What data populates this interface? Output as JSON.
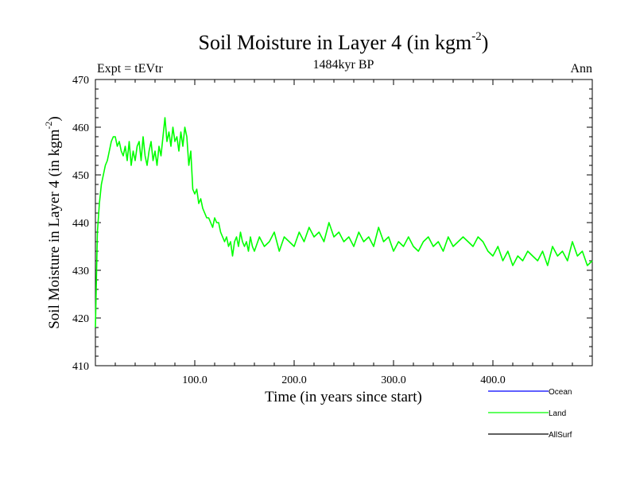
{
  "chart_data": {
    "type": "line",
    "title": "Soil Moisture in Layer 4 (in kgm",
    "title_superscript": "-2",
    "title_suffix": ")",
    "subtitle_left": "Expt = tEVtr",
    "subtitle_center": "1484kyr BP",
    "subtitle_right": "Ann",
    "xlabel": "Time (in years since start)",
    "ylabel": "Soil Moisture in Layer 4 (in kgm",
    "ylabel_superscript": "-2",
    "ylabel_suffix": ")",
    "xlim": [
      0,
      500
    ],
    "ylim": [
      410,
      470
    ],
    "x_ticks": [
      {
        "value": 100,
        "label": "100.0"
      },
      {
        "value": 200,
        "label": "200.0"
      },
      {
        "value": 300,
        "label": "300.0"
      },
      {
        "value": 400,
        "label": "400.0"
      }
    ],
    "y_ticks": [
      {
        "value": 410,
        "label": "410"
      },
      {
        "value": 420,
        "label": "420"
      },
      {
        "value": 430,
        "label": "430"
      },
      {
        "value": 440,
        "label": "440"
      },
      {
        "value": 450,
        "label": "450"
      },
      {
        "value": 460,
        "label": "460"
      },
      {
        "value": 470,
        "label": "470"
      }
    ],
    "series": [
      {
        "name": "Land",
        "color": "#00ff00",
        "x": [
          0,
          2,
          4,
          6,
          8,
          10,
          12,
          14,
          16,
          18,
          20,
          22,
          24,
          26,
          28,
          30,
          32,
          34,
          36,
          38,
          40,
          42,
          44,
          46,
          48,
          50,
          52,
          54,
          56,
          58,
          60,
          62,
          64,
          66,
          68,
          70,
          72,
          74,
          76,
          78,
          80,
          82,
          84,
          86,
          88,
          90,
          92,
          94,
          96,
          98,
          100,
          102,
          104,
          106,
          108,
          110,
          112,
          114,
          116,
          118,
          120,
          122,
          124,
          126,
          128,
          130,
          132,
          134,
          136,
          138,
          140,
          142,
          144,
          146,
          148,
          150,
          152,
          154,
          156,
          158,
          160,
          165,
          170,
          175,
          180,
          185,
          190,
          195,
          200,
          205,
          210,
          215,
          220,
          225,
          230,
          235,
          240,
          245,
          250,
          255,
          260,
          265,
          270,
          275,
          280,
          285,
          290,
          295,
          300,
          305,
          310,
          315,
          320,
          325,
          330,
          335,
          340,
          345,
          350,
          355,
          360,
          365,
          370,
          375,
          380,
          385,
          390,
          395,
          400,
          405,
          410,
          415,
          420,
          425,
          430,
          435,
          440,
          445,
          450,
          455,
          460,
          465,
          470,
          475,
          480,
          485,
          490,
          495,
          500
        ],
        "values": [
          418,
          438,
          444,
          448,
          450,
          452,
          453,
          455,
          457,
          458,
          458,
          456,
          457,
          455,
          454,
          456,
          453,
          457,
          452,
          455,
          453,
          456,
          457,
          453,
          458,
          454,
          452,
          455,
          457,
          453,
          455,
          452,
          456,
          454,
          458,
          462,
          457,
          459,
          456,
          460,
          457,
          458,
          455,
          459,
          456,
          460,
          458,
          452,
          455,
          447,
          446,
          447,
          444,
          445,
          443,
          442,
          441,
          441,
          440,
          439,
          441,
          440,
          440,
          438,
          437,
          436,
          437,
          435,
          436,
          433,
          436,
          437,
          435,
          438,
          436,
          435,
          436,
          434,
          437,
          435,
          434,
          437,
          435,
          436,
          438,
          434,
          437,
          436,
          435,
          438,
          436,
          439,
          437,
          438,
          436,
          440,
          437,
          438,
          436,
          437,
          435,
          438,
          436,
          437,
          435,
          439,
          436,
          437,
          434,
          436,
          435,
          437,
          435,
          434,
          436,
          437,
          435,
          436,
          434,
          437,
          435,
          436,
          437,
          436,
          435,
          437,
          436,
          434,
          433,
          435,
          432,
          434,
          431,
          433,
          432,
          434,
          433,
          432,
          434,
          431,
          435,
          433,
          434,
          432,
          436,
          433,
          434,
          431,
          432
        ]
      }
    ],
    "legend": [
      {
        "label": "Ocean",
        "color": "#0000ff"
      },
      {
        "label": "Land",
        "color": "#00ff00"
      },
      {
        "label": "AllSurf",
        "color": "#000000"
      }
    ],
    "legend_position": "bottom-right",
    "grid": false
  }
}
